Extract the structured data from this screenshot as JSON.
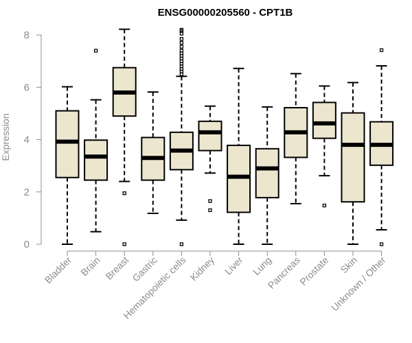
{
  "chart_data": {
    "type": "boxplot",
    "title": "ENSG00000205560 - CPT1B",
    "ylabel": "Expression",
    "xlabel": "",
    "ylim": [
      0,
      8
    ],
    "yticks": [
      0,
      2,
      4,
      6,
      8
    ],
    "box_fill": "#ede6cf",
    "series": [
      {
        "name": "Bladder",
        "min": 0,
        "q1": 2.55,
        "median": 3.92,
        "q3": 5.1,
        "max": 6.02,
        "outliers": []
      },
      {
        "name": "Brain",
        "min": 0.48,
        "q1": 2.45,
        "median": 3.35,
        "q3": 3.98,
        "max": 5.52,
        "outliers": [
          7.4
        ]
      },
      {
        "name": "Breast",
        "min": 2.4,
        "q1": 4.9,
        "median": 5.8,
        "q3": 6.75,
        "max": 8.22,
        "outliers": [
          1.95,
          0
        ]
      },
      {
        "name": "Gastric",
        "min": 1.18,
        "q1": 2.45,
        "median": 3.3,
        "q3": 4.08,
        "max": 5.82,
        "outliers": []
      },
      {
        "name": "Hematopoietic cells",
        "min": 0.92,
        "q1": 2.85,
        "median": 3.58,
        "q3": 4.28,
        "max": 6.42,
        "outliers": [
          0,
          6.5,
          6.6,
          6.7,
          6.8,
          6.9,
          7.0,
          7.1,
          7.2,
          7.3,
          7.4,
          7.55,
          7.7,
          7.85,
          8.05,
          8.15,
          8.2
        ]
      },
      {
        "name": "Kidney",
        "min": 2.72,
        "q1": 3.58,
        "median": 4.28,
        "q3": 4.7,
        "max": 5.28,
        "outliers": [
          1.65,
          1.3
        ]
      },
      {
        "name": "Liver",
        "min": 0,
        "q1": 1.22,
        "median": 2.58,
        "q3": 3.78,
        "max": 6.72,
        "outliers": []
      },
      {
        "name": "Lung",
        "min": 0,
        "q1": 1.78,
        "median": 2.9,
        "q3": 3.65,
        "max": 5.25,
        "outliers": []
      },
      {
        "name": "Pancreas",
        "min": 1.55,
        "q1": 3.32,
        "median": 4.28,
        "q3": 5.22,
        "max": 6.52,
        "outliers": []
      },
      {
        "name": "Prostate",
        "min": 2.62,
        "q1": 4.05,
        "median": 4.62,
        "q3": 5.42,
        "max": 6.05,
        "outliers": [
          1.48
        ]
      },
      {
        "name": "Skin",
        "min": 0,
        "q1": 1.62,
        "median": 3.8,
        "q3": 5.02,
        "max": 6.18,
        "outliers": []
      },
      {
        "name": "Unknown / Other",
        "min": 0.55,
        "q1": 3.02,
        "median": 3.8,
        "q3": 4.68,
        "max": 6.82,
        "outliers": [
          7.42,
          0
        ]
      }
    ]
  }
}
